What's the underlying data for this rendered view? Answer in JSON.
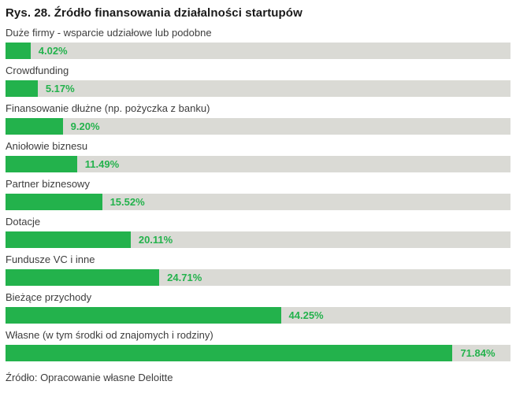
{
  "figure": {
    "title": "Rys. 28. Źródło finansowania działalności startupów",
    "source_note": "Źródło: Opracowanie własne Deloitte"
  },
  "colors": {
    "bar_green": "#23b24c",
    "track_gray": "#dadad5",
    "title_text": "#1a1a1a",
    "label_text": "#3d3d3d"
  },
  "chart_data": {
    "type": "bar",
    "orientation": "horizontal",
    "title": "Rys. 28. Źródło finansowania działalności startupów",
    "xlabel": "",
    "ylabel": "",
    "xlim": [
      0,
      81.15
    ],
    "grid": false,
    "legend": false,
    "categories": [
      "Duże firmy - wsparcie udziałowe lub podobne",
      "Crowdfunding",
      "Finansowanie dłużne (np. pożyczka z banku)",
      "Aniołowie biznesu",
      "Partner biznesowy",
      "Dotacje",
      "Fundusze VC i inne",
      "Bieżące przychody",
      "Własne (w tym środki od znajomych i rodziny)"
    ],
    "values": [
      4.02,
      5.17,
      9.2,
      11.49,
      15.52,
      20.11,
      24.71,
      44.25,
      71.84
    ],
    "value_labels": [
      "4.02%",
      "5.17%",
      "9.20%",
      "11.49%",
      "15.52%",
      "20.11%",
      "24.71%",
      "44.25%",
      "71.84%"
    ]
  }
}
